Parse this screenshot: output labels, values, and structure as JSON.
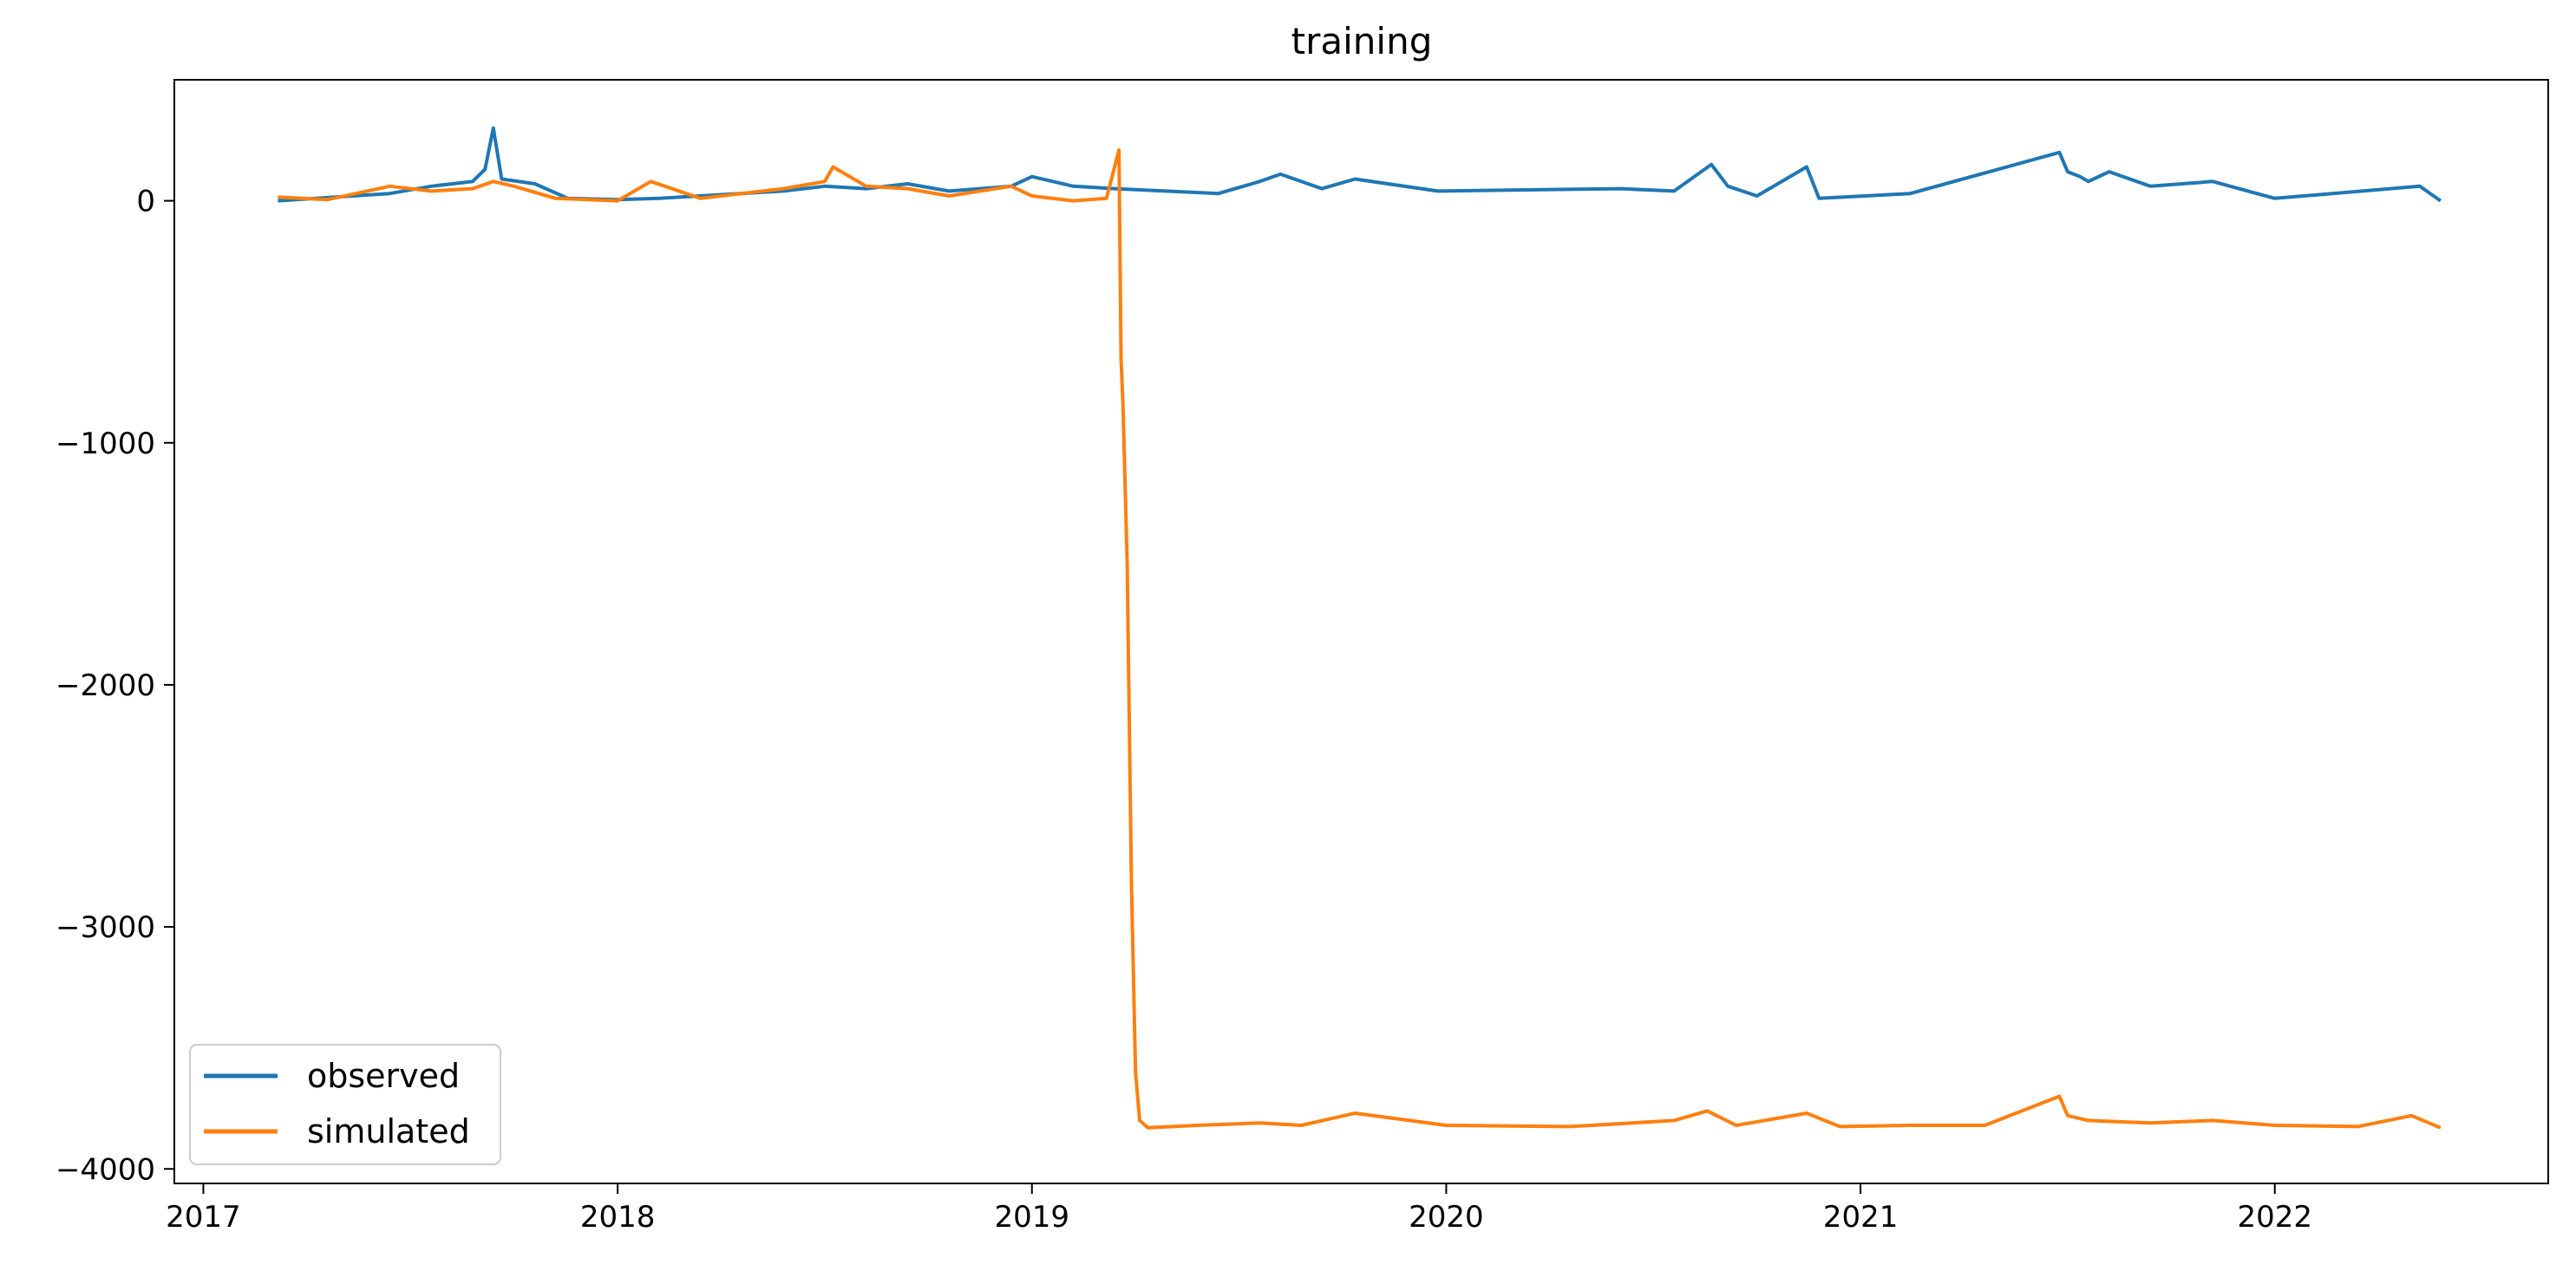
{
  "chart_data": {
    "type": "line",
    "title": "training",
    "xlabel": "",
    "ylabel": "",
    "x_tick_labels": [
      "2017",
      "2018",
      "2019",
      "2020",
      "2021",
      "2022"
    ],
    "x_tick_values": [
      2017,
      2018,
      2019,
      2020,
      2021,
      2022
    ],
    "y_tick_labels": [
      "0",
      "−1000",
      "−2000",
      "−3000",
      "−4000"
    ],
    "y_tick_values": [
      0,
      -1000,
      -2000,
      -3000,
      -4000
    ],
    "xlim": [
      2016.93,
      2022.66
    ],
    "ylim": [
      -4060,
      500
    ],
    "grid": false,
    "legend_position": "lower-left",
    "series": [
      {
        "name": "observed",
        "color": "#1f77b4",
        "x": [
          2017.18,
          2017.45,
          2017.55,
          2017.65,
          2017.68,
          2017.7,
          2017.72,
          2017.8,
          2017.88,
          2018.0,
          2018.1,
          2018.4,
          2018.5,
          2018.6,
          2018.7,
          2018.8,
          2018.95,
          2019.0,
          2019.1,
          2019.2,
          2019.45,
          2019.55,
          2019.6,
          2019.7,
          2019.78,
          2019.98,
          2020.42,
          2020.55,
          2020.64,
          2020.68,
          2020.75,
          2020.87,
          2020.9,
          2021.12,
          2021.48,
          2021.5,
          2021.53,
          2021.55,
          2021.6,
          2021.7,
          2021.85,
          2022.0,
          2022.35,
          2022.4
        ],
        "y": [
          0,
          30,
          60,
          80,
          130,
          300,
          90,
          70,
          10,
          5,
          10,
          40,
          60,
          50,
          70,
          40,
          60,
          100,
          60,
          50,
          30,
          80,
          110,
          50,
          90,
          40,
          50,
          40,
          150,
          60,
          20,
          140,
          10,
          30,
          200,
          120,
          100,
          80,
          120,
          60,
          80,
          10,
          60,
          0
        ]
      },
      {
        "name": "simulated",
        "color": "#ff7f0e",
        "x": [
          2017.18,
          2017.3,
          2017.45,
          2017.55,
          2017.65,
          2017.7,
          2017.75,
          2017.85,
          2018.0,
          2018.08,
          2018.2,
          2018.4,
          2018.5,
          2018.52,
          2018.6,
          2018.7,
          2018.8,
          2018.95,
          2019.0,
          2019.1,
          2019.18,
          2019.21,
          2019.215,
          2019.22,
          2019.23,
          2019.24,
          2019.25,
          2019.26,
          2019.28,
          2019.4,
          2019.55,
          2019.65,
          2019.78,
          2020.0,
          2020.3,
          2020.45,
          2020.55,
          2020.63,
          2020.7,
          2020.87,
          2020.95,
          2021.12,
          2021.3,
          2021.48,
          2021.5,
          2021.55,
          2021.7,
          2021.85,
          2022.0,
          2022.2,
          2022.33,
          2022.4
        ],
        "y": [
          15,
          5,
          60,
          40,
          50,
          80,
          60,
          10,
          0,
          80,
          10,
          50,
          80,
          140,
          60,
          50,
          20,
          60,
          20,
          0,
          10,
          210,
          -650,
          -850,
          -1500,
          -2800,
          -3600,
          -3800,
          -3830,
          -3820,
          -3810,
          -3820,
          -3770,
          -3820,
          -3825,
          -3810,
          -3800,
          -3760,
          -3820,
          -3770,
          -3825,
          -3820,
          -3820,
          -3700,
          -3780,
          -3800,
          -3810,
          -3800,
          -3820,
          -3825,
          -3780,
          -3830
        ]
      }
    ]
  }
}
